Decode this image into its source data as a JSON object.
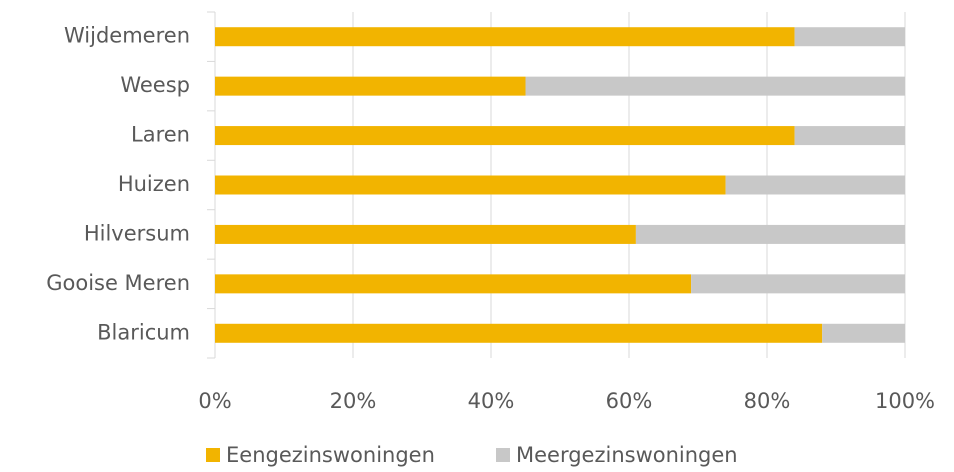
{
  "chart_data": {
    "type": "stacked-bar-horizontal",
    "categories": [
      "Wijdemeren",
      "Weesp",
      "Laren",
      "Huizen",
      "Hilversum",
      "Gooise Meren",
      "Blaricum"
    ],
    "series": [
      {
        "name": "Eengezinswoningen",
        "color": "#f2b400",
        "values": [
          84,
          45,
          84,
          74,
          61,
          69,
          88
        ]
      },
      {
        "name": "Meergezinswoningen",
        "color": "#c8c8c8",
        "values": [
          16,
          55,
          16,
          26,
          39,
          31,
          12
        ]
      }
    ],
    "xlim": [
      0,
      100
    ],
    "xticks": [
      {
        "value": 0,
        "label": "0%"
      },
      {
        "value": 20,
        "label": "20%"
      },
      {
        "value": 40,
        "label": "40%"
      },
      {
        "value": 60,
        "label": "60%"
      },
      {
        "value": 80,
        "label": "80%"
      },
      {
        "value": 100,
        "label": "100%"
      }
    ],
    "grid": true,
    "legend": "bottom"
  }
}
